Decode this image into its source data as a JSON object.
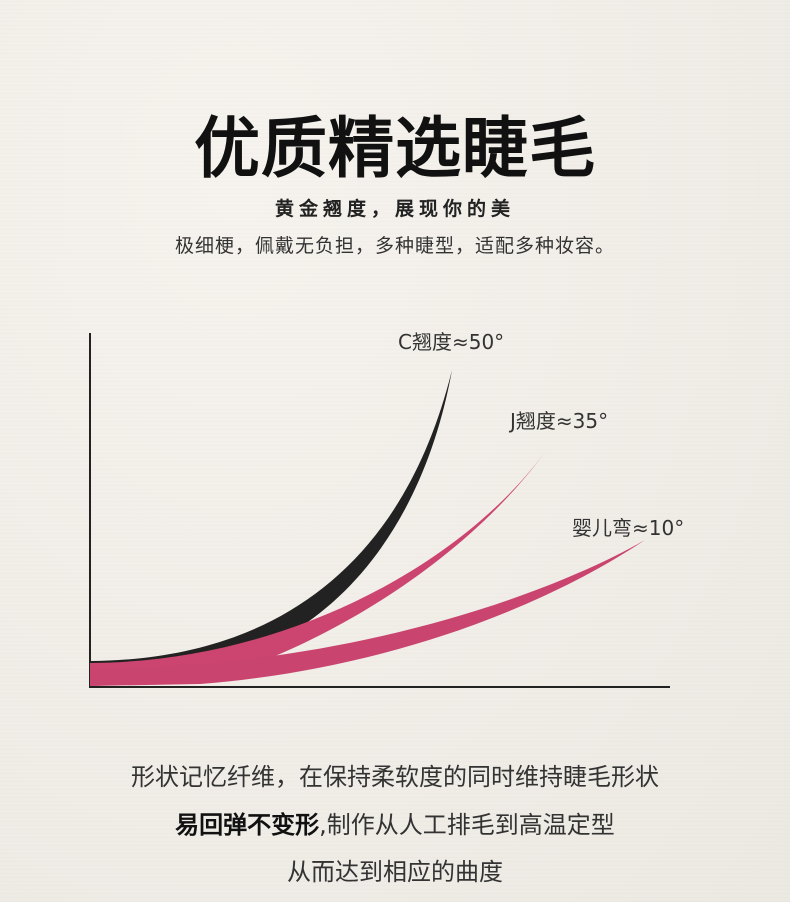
{
  "title": "优质精选睫毛",
  "subtitle": "黄金翘度，展现你的美",
  "tagline": "极细梗，佩戴无负担，多种睫型，适配多种妆容。",
  "curves": [
    {
      "label": "C翘度≈50°",
      "color": "#222222"
    },
    {
      "label": "J翘度≈35°",
      "color": "#cc4470"
    },
    {
      "label": "婴儿弯≈10°",
      "color": "#cc4470"
    }
  ],
  "body": {
    "line1": "形状记忆纤维，在保持柔软度的同时维持睫毛形状",
    "line2_bold": "易回弹不变形",
    "line2_rest": ",制作从人工排毛到高温定型",
    "line3": "从而达到相应的曲度"
  }
}
